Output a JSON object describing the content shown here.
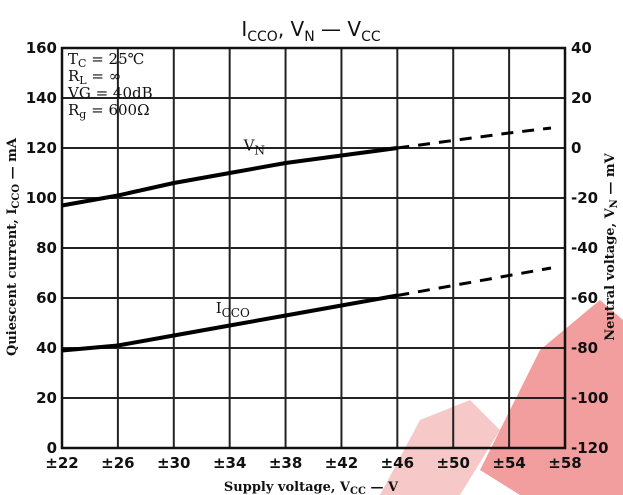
{
  "chart_data": {
    "type": "line",
    "title": {
      "main": "I",
      "main_sub": "CCO",
      "sep": ", V",
      "sep_sub": "N",
      "dash": " — V",
      "dash_sub": "CC"
    },
    "xlabel": {
      "text": "Supply voltage, V",
      "sub": "CC",
      "unit": " — V"
    },
    "ylabel_left": {
      "text": "Quiescent current, I",
      "sub": "CCO",
      "unit": " — mA"
    },
    "ylabel_right": {
      "text": "Neutral voltage, V",
      "sub": "N",
      "unit": " — mV"
    },
    "x_ticks": [
      "±22",
      "±26",
      "±30",
      "±34",
      "±38",
      "±42",
      "±46",
      "±50",
      "±54",
      "±58"
    ],
    "x_tick_values": [
      22,
      26,
      30,
      34,
      38,
      42,
      46,
      50,
      54,
      58
    ],
    "xlim": [
      22,
      58
    ],
    "ylim_left": [
      0,
      160
    ],
    "ylim_right": [
      -120,
      40
    ],
    "y_left_ticks": [
      "0",
      "20",
      "40",
      "60",
      "80",
      "100",
      "120",
      "140",
      "160"
    ],
    "y_left_tick_values": [
      0,
      20,
      40,
      60,
      80,
      100,
      120,
      140,
      160
    ],
    "y_right_ticks": [
      "40",
      "20",
      "0",
      "-20",
      "-40",
      "-60",
      "-80",
      "-100",
      "-120"
    ],
    "y_right_tick_values": [
      40,
      20,
      0,
      -20,
      -40,
      -60,
      -80,
      -100,
      -120
    ],
    "grid": true,
    "conditions": [
      {
        "main": "T",
        "sub": "C",
        "rest": " = 25℃"
      },
      {
        "main": "R",
        "sub": "L",
        "rest": " = ∞"
      },
      {
        "main": "VG",
        "sub": "",
        "rest": " = 40dB"
      },
      {
        "main": "R",
        "sub": "g",
        "rest": " = 600Ω"
      }
    ],
    "series": [
      {
        "label_main": "V",
        "label_sub": "N",
        "axis": "right",
        "solid": {
          "x": [
            22,
            26,
            30,
            34,
            38,
            42,
            46
          ],
          "y": [
            -23,
            -19,
            -14,
            -10,
            -6,
            -3,
            0
          ]
        },
        "dashed": {
          "x": [
            46,
            50,
            54,
            57
          ],
          "y": [
            0,
            3,
            6,
            8
          ]
        }
      },
      {
        "label_main": "I",
        "label_sub": "CCO",
        "axis": "left",
        "solid": {
          "x": [
            22,
            26,
            30,
            34,
            38,
            42,
            46
          ],
          "y": [
            39,
            41,
            45,
            49,
            53,
            57,
            61
          ]
        },
        "dashed": {
          "x": [
            46,
            50,
            54,
            57
          ],
          "y": [
            61,
            65,
            69,
            72
          ]
        }
      }
    ]
  }
}
